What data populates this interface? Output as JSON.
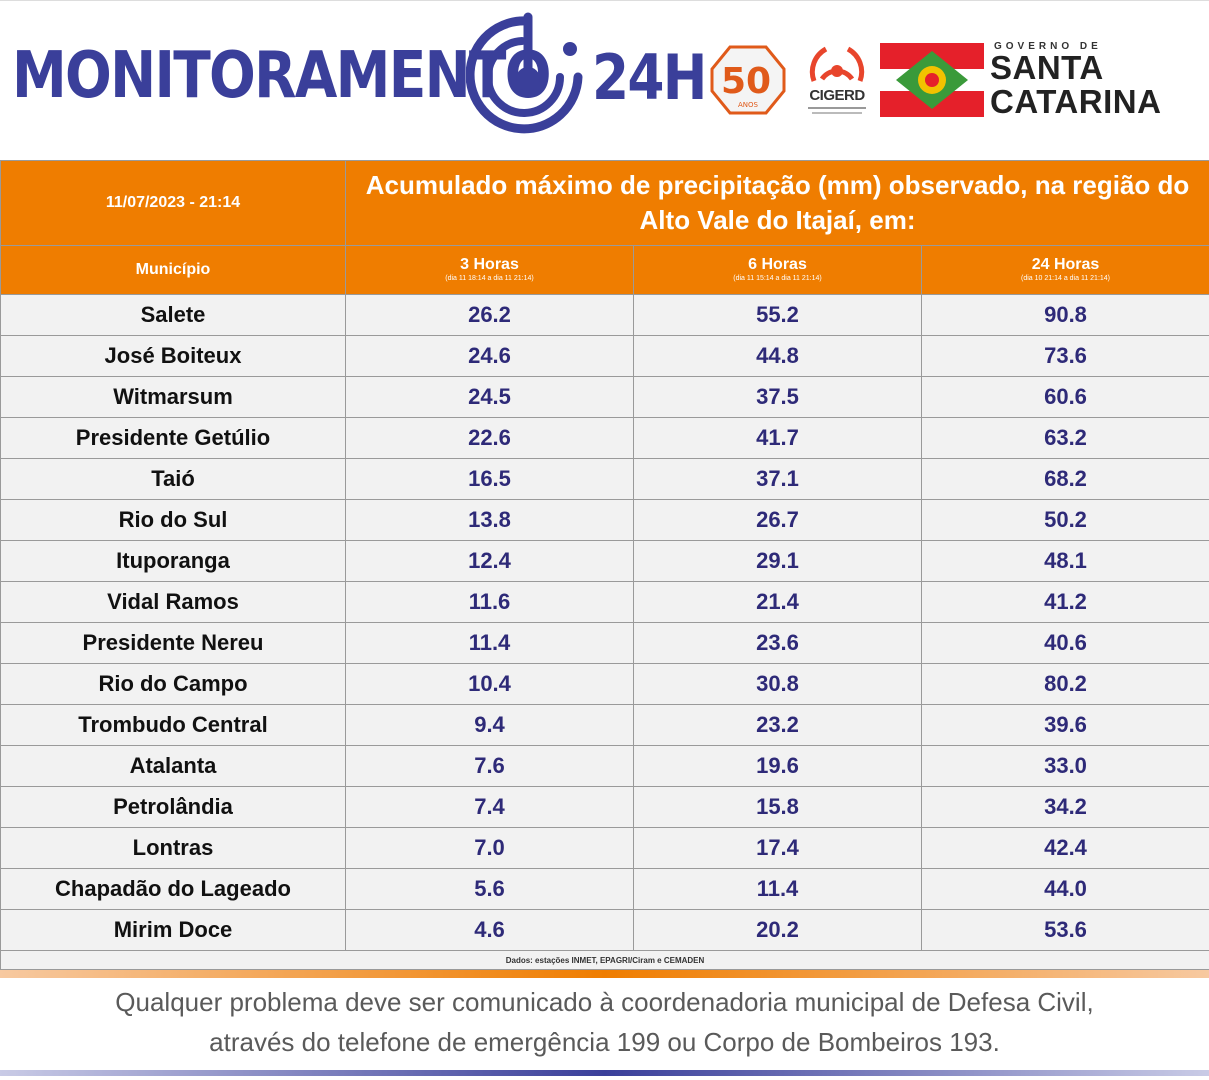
{
  "header": {
    "brand_word": "MONITORAMENTO",
    "brand_suffix": "24H",
    "badge_number": "50",
    "badge_sub": "ANOS",
    "cigerd_label": "CIGERD",
    "gov_prefix": "GOVERNO DE",
    "gov_line1": "SANTA",
    "gov_line2": "CATARINA",
    "brand_color": "#3a3f9a",
    "accent_color": "#ef7d00"
  },
  "table": {
    "date": "11/07/2023 - 21:14",
    "title": "Acumulado máximo de precipitação (mm) observado, na região do Alto Vale do Itajaí, em:",
    "col_city": "Município",
    "columns": [
      {
        "label": "3 Horas",
        "sub": "(dia 11 18:14 a dia 11 21:14)"
      },
      {
        "label": "6 Horas",
        "sub": "(dia 11 15:14 a dia 11 21:14)"
      },
      {
        "label": "24 Horas",
        "sub": "(dia 10 21:14 a dia 11 21:14)"
      }
    ],
    "rows": [
      {
        "city": "Salete",
        "h3": "26.2",
        "h6": "55.2",
        "h24": "90.8"
      },
      {
        "city": "José Boiteux",
        "h3": "24.6",
        "h6": "44.8",
        "h24": "73.6"
      },
      {
        "city": "Witmarsum",
        "h3": "24.5",
        "h6": "37.5",
        "h24": "60.6"
      },
      {
        "city": "Presidente Getúlio",
        "h3": "22.6",
        "h6": "41.7",
        "h24": "63.2"
      },
      {
        "city": "Taió",
        "h3": "16.5",
        "h6": "37.1",
        "h24": "68.2"
      },
      {
        "city": "Rio do Sul",
        "h3": "13.8",
        "h6": "26.7",
        "h24": "50.2"
      },
      {
        "city": "Ituporanga",
        "h3": "12.4",
        "h6": "29.1",
        "h24": "48.1"
      },
      {
        "city": "Vidal Ramos",
        "h3": "11.6",
        "h6": "21.4",
        "h24": "41.2"
      },
      {
        "city": "Presidente Nereu",
        "h3": "11.4",
        "h6": "23.6",
        "h24": "40.6"
      },
      {
        "city": "Rio do Campo",
        "h3": "10.4",
        "h6": "30.8",
        "h24": "80.2"
      },
      {
        "city": "Trombudo Central",
        "h3": "9.4",
        "h6": "23.2",
        "h24": "39.6"
      },
      {
        "city": "Atalanta",
        "h3": "7.6",
        "h6": "19.6",
        "h24": "33.0"
      },
      {
        "city": "Petrolândia",
        "h3": "7.4",
        "h6": "15.8",
        "h24": "34.2"
      },
      {
        "city": "Lontras",
        "h3": "7.0",
        "h6": "17.4",
        "h24": "42.4"
      },
      {
        "city": "Chapadão do Lageado",
        "h3": "5.6",
        "h6": "11.4",
        "h24": "44.0"
      },
      {
        "city": "Mirim Doce",
        "h3": "4.6",
        "h6": "20.2",
        "h24": "53.6"
      }
    ],
    "source": "Dados: estações INMET, EPAGRI/Ciram e CEMADEN"
  },
  "footer": {
    "line1": "Qualquer problema deve ser comunicado à coordenadoria municipal de Defesa Civil,",
    "line2": "através do telefone de emergência 199 ou Corpo de Bombeiros 193."
  }
}
